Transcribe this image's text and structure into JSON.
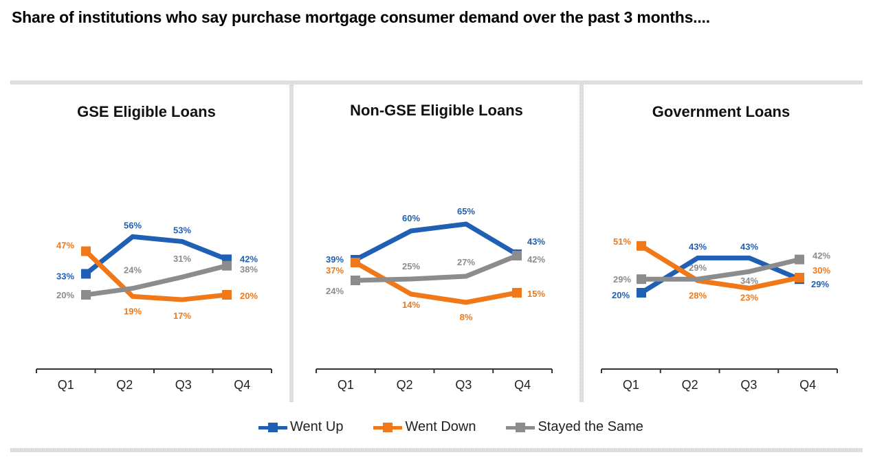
{
  "title": "Share of institutions who say purchase mortgage consumer demand over the past 3 months....",
  "colors": {
    "went_up": "#1f5fb4",
    "went_down": "#f07818",
    "stayed_same": "#8c8c8c",
    "axis": "#333333"
  },
  "legend": [
    {
      "key": "went_up",
      "label": "Went Up"
    },
    {
      "key": "went_down",
      "label": "Went Down"
    },
    {
      "key": "stayed_same",
      "label": "Stayed the Same"
    }
  ],
  "chart_data": [
    {
      "type": "line",
      "title": "GSE Eligible Loans",
      "categories": [
        "Q1",
        "Q2",
        "Q3",
        "Q4"
      ],
      "xlabel": "",
      "ylabel": "",
      "grid": false,
      "legend": "bottom",
      "series": [
        {
          "key": "went_up",
          "name": "Went Up",
          "values": [
            33,
            56,
            53,
            42
          ],
          "labels": [
            "33%",
            "56%",
            "53%",
            "42%"
          ]
        },
        {
          "key": "went_down",
          "name": "Went Down",
          "values": [
            47,
            19,
            17,
            20
          ],
          "labels": [
            "47%",
            "19%",
            "17%",
            "20%"
          ]
        },
        {
          "key": "stayed_same",
          "name": "Stayed the Same",
          "values": [
            20,
            24,
            31,
            38
          ],
          "labels": [
            "20%",
            "24%",
            "31%",
            "38%"
          ]
        }
      ]
    },
    {
      "type": "line",
      "title": "Non-GSE Eligible Loans",
      "categories": [
        "Q1",
        "Q2",
        "Q3",
        "Q4"
      ],
      "xlabel": "",
      "ylabel": "",
      "grid": false,
      "legend": "bottom",
      "series": [
        {
          "key": "went_up",
          "name": "Went Up",
          "values": [
            39,
            60,
            65,
            43
          ],
          "labels": [
            "39%",
            "60%",
            "65%",
            "43%"
          ]
        },
        {
          "key": "went_down",
          "name": "Went Down",
          "values": [
            37,
            14,
            8,
            15
          ],
          "labels": [
            "37%",
            "14%",
            "8%",
            "15%"
          ]
        },
        {
          "key": "stayed_same",
          "name": "Stayed the Same",
          "values": [
            24,
            25,
            27,
            42
          ],
          "labels": [
            "24%",
            "25%",
            "27%",
            "42%"
          ]
        }
      ]
    },
    {
      "type": "line",
      "title": "Government Loans",
      "categories": [
        "Q1",
        "Q2",
        "Q3",
        "Q4"
      ],
      "xlabel": "",
      "ylabel": "",
      "grid": false,
      "legend": "bottom",
      "series": [
        {
          "key": "went_up",
          "name": "Went Up",
          "values": [
            20,
            43,
            43,
            29
          ],
          "labels": [
            "20%",
            "43%",
            "43%",
            "29%"
          ]
        },
        {
          "key": "went_down",
          "name": "Went Down",
          "values": [
            51,
            28,
            23,
            30
          ],
          "labels": [
            "51%",
            "28%",
            "23%",
            "30%"
          ]
        },
        {
          "key": "stayed_same",
          "name": "Stayed the Same",
          "values": [
            29,
            29,
            34,
            42
          ],
          "labels": [
            "29%",
            "29%",
            "34%",
            "42%"
          ]
        }
      ]
    }
  ]
}
